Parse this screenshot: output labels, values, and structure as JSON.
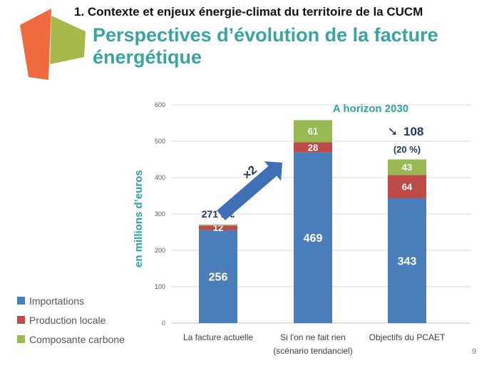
{
  "header": {
    "section": "1. Contexte et enjeux énergie-climat du territoire de la CUCM",
    "title": "Perspectives d’évolution de la facture énergétique"
  },
  "chart_data": {
    "type": "bar",
    "stacked": true,
    "categories": [
      "La facture actuelle",
      "Si l'on ne fait rien (scénario tendanciel)",
      "Objectifs du PCAET"
    ],
    "category_lines": [
      [
        "La facture actuelle"
      ],
      [
        "Si l'on ne fait rien",
        "(scénario tendanciel)"
      ],
      [
        "Objectifs du PCAET"
      ]
    ],
    "series": [
      {
        "name": "Importations",
        "values": [
          256,
          469,
          343
        ],
        "color": "#4a7ebb"
      },
      {
        "name": "Production locale",
        "values": [
          12,
          28,
          64
        ],
        "color": "#be4b48"
      },
      {
        "name": "Composante carbone",
        "values": [
          3,
          61,
          43
        ],
        "color": "#98b954"
      }
    ],
    "data_labels": [
      [
        "256",
        "12",
        ""
      ],
      [
        "469",
        "28",
        "61"
      ],
      [
        "343",
        "64",
        "43"
      ]
    ],
    "ylabel": "en millions d’euros",
    "ylim": [
      0,
      600
    ],
    "yticks": [
      0,
      100,
      200,
      300,
      400,
      500,
      600
    ],
    "grid": true,
    "legend_position": "bottom-left",
    "annotations": {
      "total_current": "271 M€",
      "multiplier": "×2",
      "horizon": "A horizon 2030",
      "reduction_arrow": "➘",
      "reduction": "108",
      "reduction_pct": "(20 %)"
    }
  },
  "page_number": "9",
  "colors": {
    "accent": "#3aa3a3",
    "annotation": "#1f3864",
    "grid": "#d9d9d9"
  }
}
